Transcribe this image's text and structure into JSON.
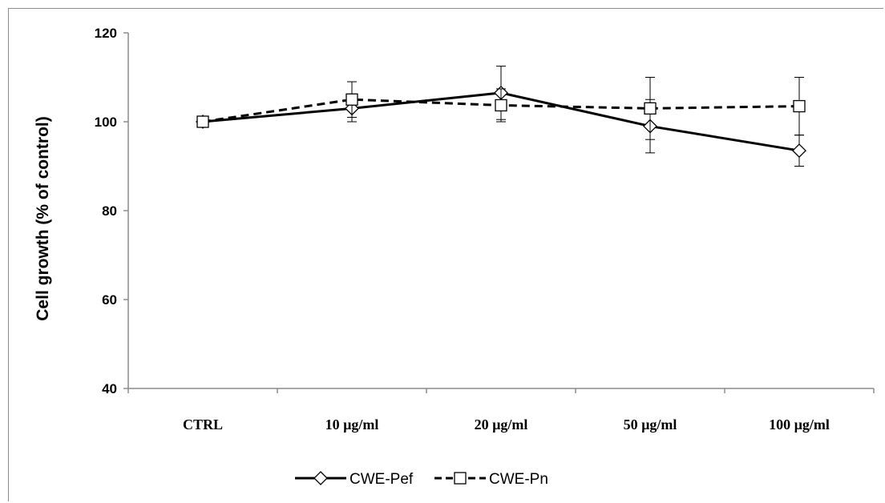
{
  "chart_data": {
    "type": "line",
    "title": "",
    "xlabel": "",
    "ylabel": "Cell growth (% of control)",
    "categories": [
      "CTRL",
      "10 µg/ml",
      "20 µg/ml",
      "50 µg/ml",
      "100 µg/ml"
    ],
    "ylim": [
      40,
      120
    ],
    "yticks": [
      40,
      60,
      80,
      100,
      120
    ],
    "grid": false,
    "legend_position": "bottom",
    "series": [
      {
        "name": "CWE-Pef",
        "marker": "diamond",
        "line_style": "solid",
        "color": "#000000",
        "values": [
          100,
          103,
          106.5,
          99,
          93.5
        ],
        "error": [
          0,
          3,
          6,
          6,
          3.5
        ]
      },
      {
        "name": "CWE-Pn",
        "marker": "square",
        "line_style": "dashed",
        "color": "#000000",
        "values": [
          100,
          105,
          103.7,
          103,
          103.5
        ],
        "error": [
          0,
          4,
          3.7,
          7,
          6.5
        ]
      }
    ]
  }
}
